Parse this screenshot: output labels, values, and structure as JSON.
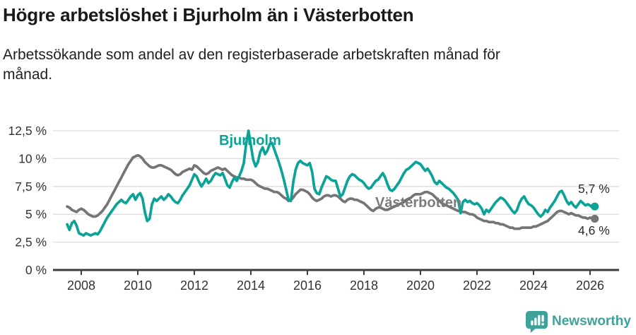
{
  "header": {
    "title": "Högre arbetslöshet i Bjurholm än i Västerbotten",
    "subtitle": "Arbetssökande som andel av den registerbaserade arbetskraften månad för månad.",
    "subtitle_lines": [
      "Arbetssökande som andel av den registerbaserade arbetskraften månad för",
      "månad."
    ]
  },
  "footer": {
    "brand": "Newsworthy",
    "logo_icon": "newsworthy-speech-bubble-bar-chart-icon"
  },
  "colors": {
    "bjurholm_line": "#0aa396",
    "vasterbotten_line": "#757575",
    "vasterbotten_label": "#7b7b7b",
    "grid": "#dcdcdc",
    "axis": "#3d3d3d",
    "tick_text": "#333333",
    "annotation_text": "#2b2b2b",
    "brand_teal": "#3fa29a",
    "title_text": "#1a1a1a"
  },
  "chart_data": {
    "type": "line",
    "title": "Högre arbetslöshet i Bjurholm än i Västerbotten",
    "subtitle": "Arbetssökande som andel av den registerbaserade arbetskraften månad för månad.",
    "unit": "%",
    "frequency": "monthly",
    "x_start": "2007-07",
    "x_end": "2026-03",
    "ylim": [
      0,
      13.2
    ],
    "grid": "horizontal-only",
    "legend_position": "inline-labels",
    "y_ticks": [
      {
        "label": "0 %",
        "value": 0
      },
      {
        "label": "2,5 %",
        "value": 2.5
      },
      {
        "label": "5 %",
        "value": 5
      },
      {
        "label": "7,5 %",
        "value": 7.5
      },
      {
        "label": "10 %",
        "value": 10
      },
      {
        "label": "12,5 %",
        "value": 12.5
      }
    ],
    "x_ticks": [
      {
        "label": "2008",
        "year": 2008
      },
      {
        "label": "2010",
        "year": 2010
      },
      {
        "label": "2012",
        "year": 2012
      },
      {
        "label": "2014",
        "year": 2014
      },
      {
        "label": "2016",
        "year": 2016
      },
      {
        "label": "2018",
        "year": 2018
      },
      {
        "label": "2020",
        "year": 2020
      },
      {
        "label": "2022",
        "year": 2022
      },
      {
        "label": "2024",
        "year": 2024
      },
      {
        "label": "2026",
        "year": 2026
      }
    ],
    "series": [
      {
        "name": "Bjurholm",
        "color": "#0aa396",
        "end_label": "5,7 %",
        "end_value": 5.7,
        "values": [
          4.1,
          3.6,
          4.2,
          4.4,
          4.0,
          3.3,
          3.2,
          3.1,
          3.3,
          3.2,
          3.1,
          3.2,
          3.3,
          3.2,
          3.5,
          3.9,
          4.3,
          4.7,
          5.0,
          5.3,
          5.6,
          5.9,
          6.1,
          6.3,
          6.1,
          6.0,
          6.3,
          6.6,
          6.8,
          6.3,
          6.7,
          6.9,
          6.4,
          5.2,
          4.4,
          4.6,
          5.9,
          6.4,
          6.2,
          6.4,
          6.6,
          6.3,
          6.5,
          6.8,
          6.6,
          6.3,
          6.1,
          6.0,
          6.3,
          6.7,
          7.0,
          7.3,
          7.6,
          8.1,
          8.6,
          8.4,
          7.9,
          7.5,
          7.8,
          8.2,
          7.8,
          8.0,
          8.4,
          8.7,
          8.6,
          8.5,
          8.7,
          8.2,
          7.6,
          7.4,
          7.9,
          8.3,
          8.0,
          8.4,
          8.9,
          9.6,
          11.3,
          12.5,
          11.2,
          9.9,
          9.3,
          9.7,
          10.6,
          11.0,
          10.4,
          10.7,
          11.3,
          11.4,
          10.8,
          10.2,
          9.6,
          8.9,
          8.1,
          7.2,
          6.3,
          6.2,
          7.9,
          9.0,
          9.6,
          9.8,
          9.6,
          9.5,
          9.4,
          9.6,
          8.8,
          7.3,
          6.9,
          6.8,
          7.4,
          7.9,
          8.4,
          8.3,
          8.1,
          8.0,
          8.0,
          7.3,
          6.6,
          6.8,
          7.4,
          8.0,
          8.4,
          8.6,
          8.5,
          8.3,
          8.1,
          8.0,
          7.8,
          7.5,
          7.3,
          7.4,
          7.7,
          8.0,
          8.1,
          8.4,
          8.7,
          8.3,
          7.7,
          7.2,
          7.1,
          7.3,
          7.6,
          7.9,
          8.3,
          8.7,
          9.0,
          9.1,
          9.3,
          9.5,
          9.7,
          9.6,
          9.5,
          9.2,
          8.9,
          9.1,
          8.8,
          8.4,
          7.9,
          7.7,
          8.0,
          7.8,
          7.6,
          7.4,
          7.3,
          7.1,
          6.9,
          6.6,
          6.3,
          5.1,
          6.1,
          6.3,
          6.1,
          6.2,
          6.0,
          5.9,
          6.0,
          5.8,
          5.5,
          5.0,
          5.4,
          5.2,
          5.5,
          5.8,
          6.1,
          6.3,
          6.5,
          6.4,
          6.2,
          5.9,
          5.6,
          5.3,
          5.1,
          5.4,
          6.0,
          6.4,
          6.6,
          6.2,
          5.9,
          5.8,
          5.6,
          5.3,
          5.0,
          4.8,
          5.0,
          5.4,
          5.2,
          5.6,
          5.9,
          6.2,
          6.6,
          7.0,
          7.1,
          6.7,
          6.2,
          5.9,
          6.1,
          5.8,
          5.6,
          5.9,
          6.2,
          6.0,
          5.8,
          5.9,
          5.8,
          5.6,
          5.7
        ]
      },
      {
        "name": "Västerbotten",
        "color": "#757575",
        "end_label": "4,6 %",
        "end_value": 4.6,
        "values": [
          5.7,
          5.6,
          5.4,
          5.3,
          5.2,
          5.4,
          5.5,
          5.4,
          5.2,
          5.0,
          4.9,
          4.8,
          4.8,
          4.9,
          5.1,
          5.3,
          5.6,
          5.9,
          6.3,
          6.7,
          7.1,
          7.5,
          7.9,
          8.3,
          8.7,
          9.1,
          9.5,
          9.8,
          10.1,
          10.2,
          10.3,
          10.2,
          10.0,
          9.7,
          9.5,
          9.3,
          9.2,
          9.2,
          9.3,
          9.4,
          9.4,
          9.3,
          9.2,
          9.1,
          9.0,
          8.8,
          8.6,
          8.5,
          8.6,
          8.8,
          8.9,
          9.0,
          9.1,
          9.0,
          9.4,
          9.3,
          9.1,
          8.9,
          8.7,
          8.6,
          8.7,
          8.9,
          9.0,
          9.1,
          9.2,
          9.1,
          9.0,
          9.1,
          8.9,
          8.7,
          8.5,
          8.4,
          8.3,
          8.3,
          8.2,
          8.2,
          8.1,
          8.1,
          8.1,
          8.0,
          7.8,
          7.6,
          7.5,
          7.4,
          7.3,
          7.3,
          7.2,
          7.1,
          7.0,
          7.0,
          6.9,
          6.7,
          6.5,
          6.4,
          6.2,
          6.3,
          6.5,
          6.8,
          7.0,
          7.2,
          7.2,
          7.1,
          7.0,
          6.8,
          6.5,
          6.3,
          6.2,
          6.3,
          6.4,
          6.6,
          6.7,
          6.7,
          6.6,
          6.7,
          6.7,
          6.6,
          6.4,
          6.2,
          6.1,
          6.3,
          6.4,
          6.4,
          6.3,
          6.3,
          6.2,
          6.1,
          6.0,
          5.8,
          5.6,
          5.4,
          5.3,
          5.5,
          5.6,
          5.6,
          5.5,
          5.4,
          5.4,
          5.5,
          5.6,
          5.7,
          5.8,
          5.9,
          6.0,
          6.1,
          6.3,
          6.4,
          6.5,
          6.7,
          6.8,
          6.8,
          6.8,
          6.9,
          7.0,
          7.0,
          6.9,
          6.8,
          6.6,
          6.4,
          6.2,
          6.0,
          5.9,
          5.8,
          5.7,
          5.6,
          5.5,
          5.4,
          5.3,
          5.3,
          5.2,
          5.2,
          5.1,
          5.0,
          5.0,
          4.9,
          4.7,
          4.6,
          4.5,
          4.4,
          4.4,
          4.3,
          4.3,
          4.3,
          4.2,
          4.2,
          4.1,
          4.1,
          4.0,
          3.9,
          3.8,
          3.8,
          3.7,
          3.7,
          3.7,
          3.8,
          3.8,
          3.8,
          3.8,
          3.8,
          3.9,
          3.9,
          4.0,
          4.1,
          4.2,
          4.3,
          4.4,
          4.6,
          4.8,
          5.0,
          5.2,
          5.3,
          5.3,
          5.2,
          5.1,
          5.0,
          5.1,
          5.0,
          4.9,
          4.9,
          4.8,
          4.7,
          4.7,
          4.6,
          4.7,
          4.6,
          4.6
        ]
      }
    ]
  }
}
